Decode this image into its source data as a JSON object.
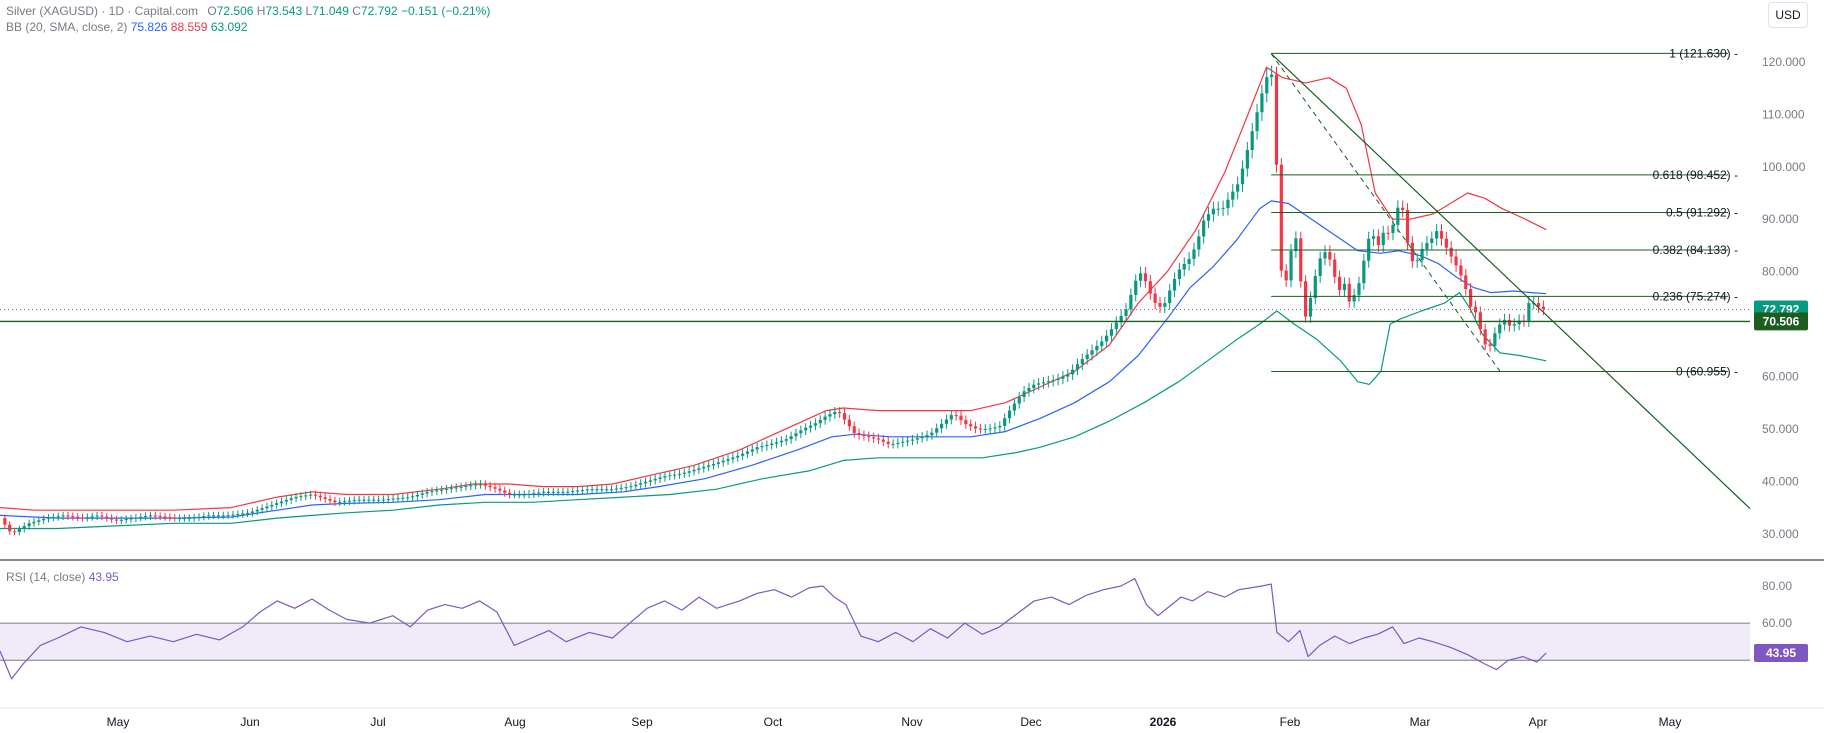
{
  "header": {
    "symbol": "Silver (XAGUSD) · 1D · Capital.com",
    "o_label": "O",
    "o_value": "72.506",
    "h_label": "H",
    "h_value": "73.543",
    "l_label": "L",
    "l_value": "71.049",
    "c_label": "C",
    "c_value": "72.792",
    "change": "−0.151 (−0.21%)",
    "bb_label": "BB (20, SMA, close, 2)",
    "bb_mid": "75.826",
    "bb_upper": "88.559",
    "bb_lower": "63.092",
    "currency": "USD"
  },
  "rsi_legend": {
    "label": "RSI (14, close)",
    "value": "43.95"
  },
  "colors": {
    "up": "#089981",
    "down": "#f23645",
    "basis": "#2962ff",
    "upper": "#f23645",
    "lower": "#089981",
    "rsi": "#7e57c2",
    "fib": "#1b5e20"
  },
  "chart_data": {
    "type": "candlestick",
    "main_price_axis": {
      "ylim": [
        25,
        128
      ],
      "ticks": [
        "120.000",
        "110.000",
        "100.000",
        "90.000",
        "80.000",
        "70.000",
        "60.000",
        "50.000",
        "40.000",
        "30.000"
      ]
    },
    "rsi_axis": {
      "ylim": [
        24,
        94
      ],
      "ticks": [
        "80.00",
        "60.00"
      ],
      "band": [
        40,
        60
      ]
    },
    "x_labels": [
      "May",
      "Jun",
      "Jul",
      "Aug",
      "Sep",
      "Oct",
      "Nov",
      "Dec",
      "2026",
      "Feb",
      "Mar",
      "Apr",
      "May"
    ],
    "last_price_label": "72.792",
    "horizontal_level_label": "70.506",
    "horizontal_level": 70.506,
    "rsi_value_label": "43.95",
    "fib_levels": [
      {
        "ratio": "1",
        "price": 121.63,
        "label": "1 (121.630)"
      },
      {
        "ratio": "0.618",
        "price": 98.452,
        "label": "0.618 (98.452)"
      },
      {
        "ratio": "0.5",
        "price": 91.292,
        "label": "0.5 (91.292)"
      },
      {
        "ratio": "0.382",
        "price": 84.133,
        "label": "0.382 (84.133)"
      },
      {
        "ratio": "0.236",
        "price": 75.274,
        "label": "0.236 (75.274)"
      },
      {
        "ratio": "0",
        "price": 60.955,
        "label": "0 (60.955)"
      }
    ],
    "close_path": [
      [
        0,
        33
      ],
      [
        10,
        30
      ],
      [
        25,
        32
      ],
      [
        40,
        33
      ],
      [
        55,
        33.5
      ],
      [
        70,
        33
      ],
      [
        85,
        33.5
      ],
      [
        100,
        32.5
      ],
      [
        115,
        33
      ],
      [
        130,
        33.5
      ],
      [
        150,
        33
      ],
      [
        165,
        33
      ],
      [
        180,
        33.5
      ],
      [
        195,
        33.5
      ],
      [
        215,
        34
      ],
      [
        235,
        35.5
      ],
      [
        255,
        37
      ],
      [
        270,
        37.5
      ],
      [
        290,
        36
      ],
      [
        310,
        36.5
      ],
      [
        330,
        36.5
      ],
      [
        355,
        37
      ],
      [
        370,
        38
      ],
      [
        385,
        38.5
      ],
      [
        400,
        39
      ],
      [
        415,
        39.5
      ],
      [
        430,
        38.5
      ],
      [
        440,
        37.5
      ],
      [
        455,
        37.5
      ],
      [
        470,
        38
      ],
      [
        490,
        38
      ],
      [
        510,
        38.5
      ],
      [
        530,
        38.5
      ],
      [
        545,
        39
      ],
      [
        560,
        40
      ],
      [
        575,
        41
      ],
      [
        590,
        41.5
      ],
      [
        605,
        42.5
      ],
      [
        620,
        43.5
      ],
      [
        640,
        45
      ],
      [
        655,
        46.5
      ],
      [
        665,
        47
      ],
      [
        680,
        48
      ],
      [
        695,
        50
      ],
      [
        705,
        51
      ],
      [
        715,
        52.5
      ],
      [
        725,
        53.5
      ],
      [
        730,
        52
      ],
      [
        740,
        49
      ],
      [
        750,
        48.5
      ],
      [
        760,
        48
      ],
      [
        770,
        47
      ],
      [
        780,
        47.5
      ],
      [
        790,
        48
      ],
      [
        805,
        49
      ],
      [
        815,
        51
      ],
      [
        825,
        53
      ],
      [
        835,
        51
      ],
      [
        845,
        50
      ],
      [
        855,
        50
      ],
      [
        865,
        50.5
      ],
      [
        875,
        54
      ],
      [
        885,
        57
      ],
      [
        895,
        58.5
      ],
      [
        905,
        59
      ],
      [
        915,
        59.5
      ],
      [
        925,
        60.5
      ],
      [
        935,
        63
      ],
      [
        945,
        65
      ],
      [
        955,
        67
      ],
      [
        965,
        70
      ],
      [
        975,
        73
      ],
      [
        982,
        78
      ],
      [
        988,
        80
      ],
      [
        995,
        76
      ],
      [
        1002,
        73
      ],
      [
        1008,
        74
      ],
      [
        1015,
        78
      ],
      [
        1022,
        81
      ],
      [
        1028,
        82
      ],
      [
        1035,
        85
      ],
      [
        1042,
        90
      ],
      [
        1050,
        92
      ],
      [
        1058,
        92
      ],
      [
        1066,
        95
      ],
      [
        1072,
        97
      ],
      [
        1078,
        102
      ],
      [
        1085,
        108
      ],
      [
        1092,
        114
      ],
      [
        1096,
        117
      ],
      [
        1100,
        119
      ],
      [
        1104,
        105
      ],
      [
        1107,
        82
      ],
      [
        1112,
        77
      ],
      [
        1118,
        85
      ],
      [
        1123,
        87
      ],
      [
        1128,
        70
      ],
      [
        1133,
        74
      ],
      [
        1138,
        79
      ],
      [
        1143,
        83
      ],
      [
        1148,
        84
      ],
      [
        1153,
        81
      ],
      [
        1158,
        76
      ],
      [
        1163,
        78
      ],
      [
        1168,
        74
      ],
      [
        1173,
        76
      ],
      [
        1178,
        79
      ],
      [
        1183,
        86
      ],
      [
        1188,
        87
      ],
      [
        1193,
        85
      ],
      [
        1198,
        88
      ],
      [
        1203,
        87
      ],
      [
        1208,
        91
      ],
      [
        1212,
        94
      ],
      [
        1216,
        89
      ],
      [
        1220,
        82
      ],
      [
        1226,
        82
      ],
      [
        1232,
        85
      ],
      [
        1238,
        86
      ],
      [
        1244,
        88
      ],
      [
        1248,
        86
      ],
      [
        1253,
        84
      ],
      [
        1258,
        82
      ],
      [
        1263,
        80
      ],
      [
        1268,
        77
      ],
      [
        1273,
        73
      ],
      [
        1278,
        72
      ],
      [
        1283,
        67
      ],
      [
        1288,
        65
      ],
      [
        1293,
        68
      ],
      [
        1298,
        70
      ],
      [
        1303,
        71
      ],
      [
        1308,
        69
      ],
      [
        1313,
        71
      ],
      [
        1318,
        70
      ],
      [
        1323,
        74
      ],
      [
        1328,
        74
      ],
      [
        1333,
        73
      ],
      [
        1338,
        72.8
      ]
    ],
    "bb_upper_path": [
      [
        0,
        35
      ],
      [
        30,
        34.5
      ],
      [
        60,
        34.5
      ],
      [
        100,
        34.5
      ],
      [
        150,
        34.5
      ],
      [
        200,
        35
      ],
      [
        240,
        37
      ],
      [
        270,
        38
      ],
      [
        300,
        37.5
      ],
      [
        340,
        37.5
      ],
      [
        380,
        38.5
      ],
      [
        410,
        39.5
      ],
      [
        440,
        39.5
      ],
      [
        470,
        39
      ],
      [
        500,
        39
      ],
      [
        530,
        39.5
      ],
      [
        560,
        41
      ],
      [
        600,
        43
      ],
      [
        640,
        46
      ],
      [
        680,
        50
      ],
      [
        715,
        53.5
      ],
      [
        730,
        54
      ],
      [
        760,
        53.5
      ],
      [
        800,
        53.5
      ],
      [
        840,
        53.5
      ],
      [
        870,
        55
      ],
      [
        900,
        58
      ],
      [
        930,
        61
      ],
      [
        960,
        66
      ],
      [
        985,
        74
      ],
      [
        1010,
        80
      ],
      [
        1035,
        88
      ],
      [
        1060,
        99
      ],
      [
        1080,
        110
      ],
      [
        1096,
        119
      ],
      [
        1110,
        117
      ],
      [
        1130,
        116
      ],
      [
        1150,
        117
      ],
      [
        1165,
        115
      ],
      [
        1178,
        108
      ],
      [
        1190,
        95
      ],
      [
        1205,
        90
      ],
      [
        1220,
        90
      ],
      [
        1240,
        91
      ],
      [
        1255,
        93
      ],
      [
        1270,
        95
      ],
      [
        1285,
        94
      ],
      [
        1300,
        92
      ],
      [
        1320,
        90
      ],
      [
        1338,
        88
      ]
    ],
    "bb_basis_path": [
      [
        0,
        33.5
      ],
      [
        50,
        33
      ],
      [
        100,
        33
      ],
      [
        150,
        33
      ],
      [
        200,
        33.2
      ],
      [
        240,
        34.5
      ],
      [
        270,
        35.5
      ],
      [
        300,
        35.8
      ],
      [
        340,
        36
      ],
      [
        380,
        36.5
      ],
      [
        420,
        37.5
      ],
      [
        460,
        37.5
      ],
      [
        500,
        37.5
      ],
      [
        540,
        38
      ],
      [
        570,
        39
      ],
      [
        610,
        40.5
      ],
      [
        650,
        43
      ],
      [
        690,
        46
      ],
      [
        720,
        48.5
      ],
      [
        740,
        49
      ],
      [
        770,
        48.5
      ],
      [
        800,
        48.5
      ],
      [
        840,
        48.5
      ],
      [
        870,
        49.5
      ],
      [
        900,
        52
      ],
      [
        930,
        55
      ],
      [
        960,
        59
      ],
      [
        985,
        64
      ],
      [
        1010,
        71
      ],
      [
        1030,
        77
      ],
      [
        1050,
        81
      ],
      [
        1070,
        86
      ],
      [
        1090,
        92
      ],
      [
        1100,
        93.5
      ],
      [
        1115,
        93
      ],
      [
        1135,
        90
      ],
      [
        1155,
        87
      ],
      [
        1175,
        84
      ],
      [
        1195,
        83.5
      ],
      [
        1210,
        84
      ],
      [
        1230,
        83
      ],
      [
        1245,
        81.5
      ],
      [
        1260,
        79
      ],
      [
        1275,
        77
      ],
      [
        1290,
        76
      ],
      [
        1310,
        76.3
      ],
      [
        1325,
        76
      ],
      [
        1338,
        75.8
      ]
    ],
    "bb_lower_path": [
      [
        0,
        31
      ],
      [
        50,
        31
      ],
      [
        100,
        31.5
      ],
      [
        150,
        32
      ],
      [
        200,
        32
      ],
      [
        240,
        33
      ],
      [
        270,
        33.5
      ],
      [
        300,
        34
      ],
      [
        340,
        34.5
      ],
      [
        380,
        35.5
      ],
      [
        420,
        36
      ],
      [
        460,
        36
      ],
      [
        500,
        36.5
      ],
      [
        540,
        37
      ],
      [
        580,
        37.5
      ],
      [
        620,
        38.5
      ],
      [
        660,
        40.5
      ],
      [
        700,
        42
      ],
      [
        730,
        44
      ],
      [
        760,
        44.5
      ],
      [
        790,
        44.5
      ],
      [
        820,
        44.5
      ],
      [
        850,
        44.5
      ],
      [
        880,
        45.5
      ],
      [
        900,
        46.5
      ],
      [
        930,
        48.5
      ],
      [
        960,
        51.5
      ],
      [
        990,
        55
      ],
      [
        1020,
        59
      ],
      [
        1045,
        63
      ],
      [
        1070,
        67
      ],
      [
        1090,
        70
      ],
      [
        1105,
        72.5
      ],
      [
        1120,
        70
      ],
      [
        1140,
        67
      ],
      [
        1160,
        63
      ],
      [
        1175,
        59
      ],
      [
        1185,
        58.5
      ],
      [
        1195,
        61
      ],
      [
        1203,
        70
      ],
      [
        1212,
        71
      ],
      [
        1230,
        72.5
      ],
      [
        1250,
        74
      ],
      [
        1263,
        76
      ],
      [
        1272,
        73
      ],
      [
        1283,
        68
      ],
      [
        1298,
        64.5
      ],
      [
        1315,
        64
      ],
      [
        1338,
        63
      ]
    ],
    "trendline_solid": [
      [
        1100,
        121.6
      ],
      [
        1750,
        34.8
      ]
    ],
    "trendline_dashed": [
      [
        1100,
        121.6
      ],
      [
        1500,
        61
      ]
    ],
    "rsi_path": [
      [
        0,
        45
      ],
      [
        10,
        30
      ],
      [
        20,
        38
      ],
      [
        35,
        48
      ],
      [
        50,
        52
      ],
      [
        70,
        58
      ],
      [
        90,
        55
      ],
      [
        110,
        50
      ],
      [
        130,
        53
      ],
      [
        150,
        50
      ],
      [
        170,
        54
      ],
      [
        190,
        51
      ],
      [
        210,
        58
      ],
      [
        225,
        66
      ],
      [
        240,
        72
      ],
      [
        255,
        68
      ],
      [
        270,
        73
      ],
      [
        285,
        67
      ],
      [
        300,
        62
      ],
      [
        320,
        60
      ],
      [
        340,
        64
      ],
      [
        355,
        58
      ],
      [
        370,
        67
      ],
      [
        385,
        70
      ],
      [
        400,
        68
      ],
      [
        415,
        72
      ],
      [
        430,
        66
      ],
      [
        445,
        48
      ],
      [
        460,
        52
      ],
      [
        475,
        56
      ],
      [
        490,
        50
      ],
      [
        510,
        55
      ],
      [
        530,
        52
      ],
      [
        545,
        60
      ],
      [
        560,
        68
      ],
      [
        575,
        72
      ],
      [
        590,
        67
      ],
      [
        605,
        74
      ],
      [
        620,
        68
      ],
      [
        640,
        72
      ],
      [
        655,
        76
      ],
      [
        670,
        78
      ],
      [
        685,
        74
      ],
      [
        700,
        79
      ],
      [
        712,
        80
      ],
      [
        722,
        74
      ],
      [
        732,
        70
      ],
      [
        745,
        53
      ],
      [
        760,
        50
      ],
      [
        775,
        55
      ],
      [
        790,
        50
      ],
      [
        805,
        57
      ],
      [
        820,
        52
      ],
      [
        835,
        60
      ],
      [
        850,
        54
      ],
      [
        865,
        58
      ],
      [
        880,
        65
      ],
      [
        895,
        72
      ],
      [
        910,
        74
      ],
      [
        925,
        70
      ],
      [
        940,
        75
      ],
      [
        955,
        78
      ],
      [
        970,
        80
      ],
      [
        982,
        84
      ],
      [
        992,
        70
      ],
      [
        1002,
        64
      ],
      [
        1012,
        69
      ],
      [
        1022,
        74
      ],
      [
        1032,
        72
      ],
      [
        1045,
        77
      ],
      [
        1060,
        74
      ],
      [
        1072,
        78
      ],
      [
        1082,
        79
      ],
      [
        1092,
        80
      ],
      [
        1100,
        81
      ],
      [
        1105,
        55
      ],
      [
        1115,
        50
      ],
      [
        1125,
        56
      ],
      [
        1132,
        42
      ],
      [
        1142,
        48
      ],
      [
        1155,
        53
      ],
      [
        1168,
        49
      ],
      [
        1180,
        52
      ],
      [
        1192,
        54
      ],
      [
        1205,
        58
      ],
      [
        1215,
        49
      ],
      [
        1228,
        52
      ],
      [
        1240,
        50
      ],
      [
        1255,
        47
      ],
      [
        1270,
        43
      ],
      [
        1285,
        38
      ],
      [
        1295,
        35
      ],
      [
        1305,
        40
      ],
      [
        1318,
        42
      ],
      [
        1330,
        39
      ],
      [
        1338,
        44
      ]
    ]
  }
}
